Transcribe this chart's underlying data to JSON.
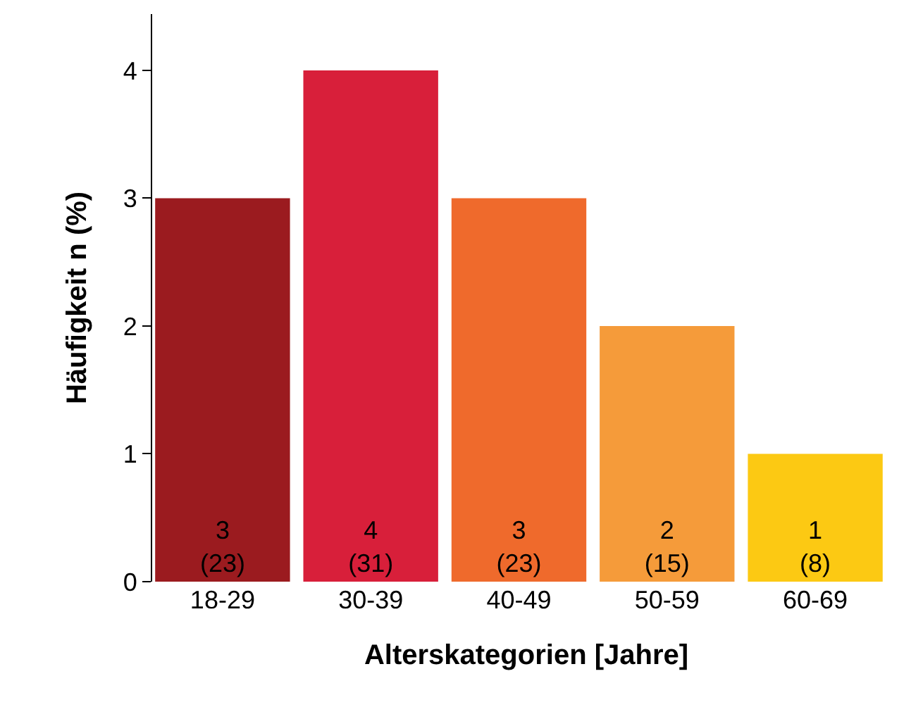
{
  "chart_data": {
    "type": "bar",
    "xlabel": "Alterskategorien [Jahre]",
    "ylabel": "Häufigkeit n (%)",
    "categories": [
      "18-29",
      "30-39",
      "40-49",
      "50-59",
      "60-69"
    ],
    "values": [
      3,
      4,
      3,
      2,
      1
    ],
    "colors": [
      "#9b1b1f",
      "#d81f3a",
      "#ef6a2c",
      "#f59b3a",
      "#fcc913"
    ],
    "value_labels": [
      "3\n(23)",
      "4\n(31)",
      "3\n(23)",
      "2\n(15)",
      "1\n(8)"
    ],
    "ylim": [
      0,
      4.44
    ],
    "yticks": [
      0,
      1,
      2,
      3,
      4
    ],
    "grid": false,
    "legend": false
  }
}
